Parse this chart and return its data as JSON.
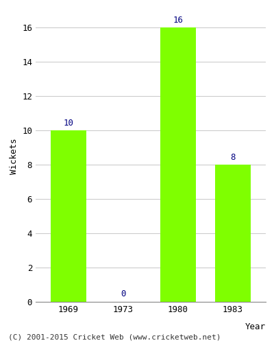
{
  "categories": [
    "1969",
    "1973",
    "1980",
    "1983"
  ],
  "values": [
    10,
    0,
    16,
    8
  ],
  "bar_color": "#7FFF00",
  "label_color": "#000080",
  "ylabel": "Wickets",
  "xlabel": "Year",
  "ylim": [
    0,
    17
  ],
  "yticks": [
    0,
    2,
    4,
    6,
    8,
    10,
    12,
    14,
    16
  ],
  "footer": "(C) 2001-2015 Cricket Web (www.cricketweb.net)",
  "background_color": "#ffffff",
  "plot_background": "#ffffff",
  "label_fontsize": 9,
  "axis_fontsize": 9,
  "footer_fontsize": 8,
  "bar_width": 0.65
}
